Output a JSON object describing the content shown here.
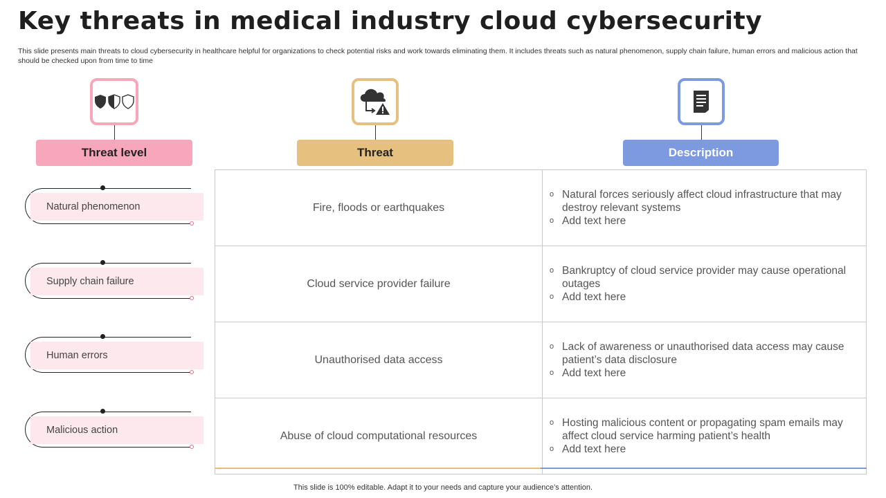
{
  "title": "Key threats in medical industry cloud cybersecurity",
  "subtitle": "This slide presents main threats to cloud cybersecurity in healthcare helpful for organizations to check potential risks and work towards eliminating them. It includes threats such as natural phenomenon, supply chain failure, human errors and malicious action that should be checked upon from time to time",
  "columns": {
    "threat_level": {
      "label": "Threat level",
      "icon": "shields-icon",
      "color": "#f7a6bb",
      "text_color": "#222222"
    },
    "threat": {
      "label": "Threat",
      "icon": "cloud-warning-icon",
      "color": "#e6c07e",
      "text_color": "#222222"
    },
    "description": {
      "label": "Description",
      "icon": "document-icon",
      "color": "#7d99e0",
      "text_color": "#ffffff"
    }
  },
  "rows": [
    {
      "level": "Natural phenomenon",
      "threat": "Fire, floods or earthquakes",
      "desc1": "Natural forces seriously affect cloud infrastructure  that may destroy relevant systems",
      "desc2": "Add text here"
    },
    {
      "level": "Supply chain failure",
      "threat": "Cloud service provider failure",
      "desc1": "Bankruptcy of cloud service provider may cause operational outages",
      "desc2": "Add text here"
    },
    {
      "level": "Human errors",
      "threat": "Unauthorised data access",
      "desc1": "Lack of awareness or unauthorised  data access may cause patient’s data disclosure",
      "desc2": "Add text here"
    },
    {
      "level": "Malicious action",
      "threat": "Abuse of cloud computational resources",
      "desc1": "Hosting malicious content  or propagating spam emails may affect cloud service harming patient’s health",
      "desc2": "Add text here"
    }
  ],
  "bullet_glyph": "o",
  "footer": "This slide is 100% editable. Adapt it to your needs and capture your audience’s attention."
}
